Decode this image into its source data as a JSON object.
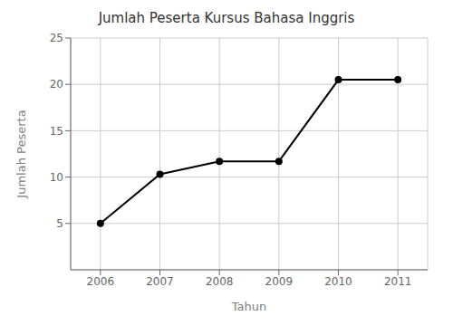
{
  "chart_data": {
    "type": "line",
    "title": "Jumlah Peserta Kursus Bahasa Inggris",
    "xlabel": "Tahun",
    "ylabel": "Jumlah Peserta",
    "x": [
      2006,
      2007,
      2008,
      2009,
      2010,
      2011
    ],
    "values": [
      5,
      10.3,
      11.7,
      11.7,
      20.5,
      20.5
    ],
    "xlim": [
      2005.5,
      2011.5
    ],
    "xticks": [
      2006,
      2007,
      2008,
      2009,
      2010,
      2011
    ],
    "ylim": [
      0,
      25
    ],
    "yticks": [
      5,
      10,
      15,
      20,
      25
    ],
    "color": "#000000",
    "marker": "circle",
    "grid": true
  }
}
